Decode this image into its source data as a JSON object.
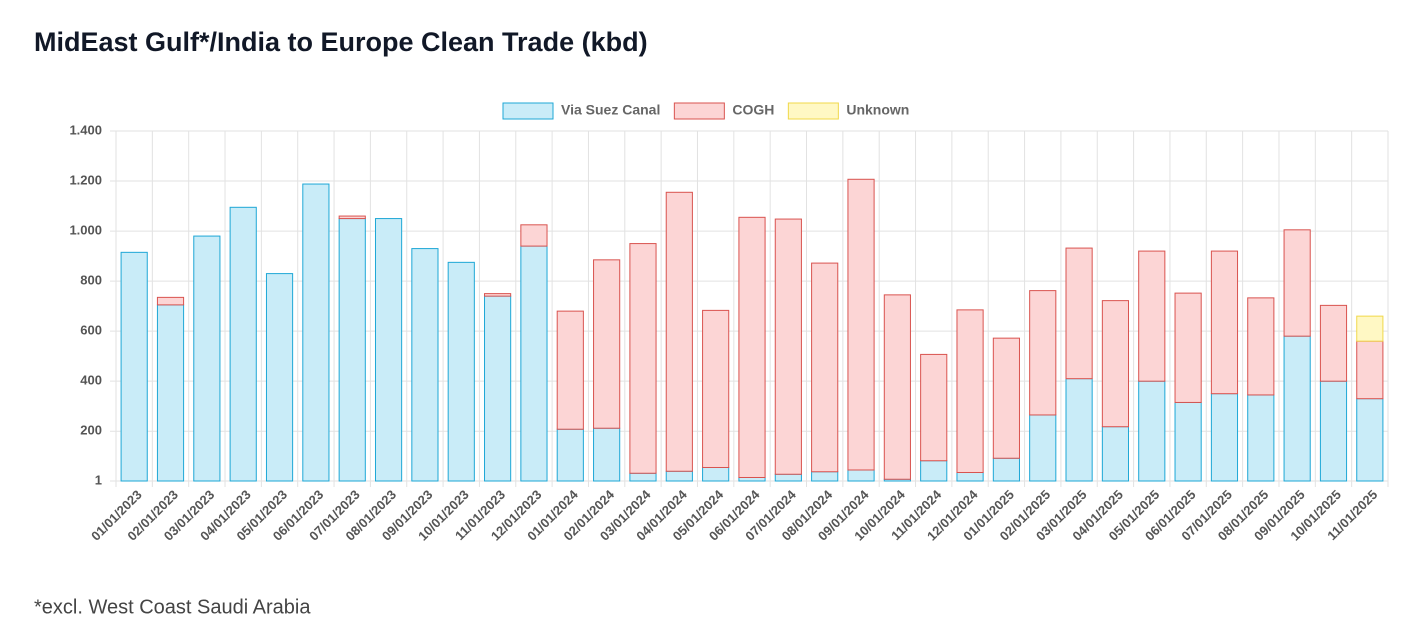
{
  "chart_data": {
    "type": "bar",
    "stacked": true,
    "title": "MidEast Gulf*/India to Europe Clean Trade (kbd)",
    "footnote": "*excl. West Coast Saudi Arabia",
    "categories": [
      "01/01/2023",
      "02/01/2023",
      "03/01/2023",
      "04/01/2023",
      "05/01/2023",
      "06/01/2023",
      "07/01/2023",
      "08/01/2023",
      "09/01/2023",
      "10/01/2023",
      "11/01/2023",
      "12/01/2023",
      "01/01/2024",
      "02/01/2024",
      "03/01/2024",
      "04/01/2024",
      "05/01/2024",
      "06/01/2024",
      "07/01/2024",
      "08/01/2024",
      "09/01/2024",
      "10/01/2024",
      "11/01/2024",
      "12/01/2024",
      "01/01/2025",
      "02/01/2025",
      "03/01/2025",
      "04/01/2025",
      "05/01/2025",
      "06/01/2025",
      "07/01/2025",
      "08/01/2025",
      "09/01/2025",
      "10/01/2025",
      "11/01/2025"
    ],
    "series": [
      {
        "name": "Via Suez Canal",
        "color": "#1ea7d6",
        "fill": "#c9ecf8",
        "values": [
          915,
          705,
          980,
          1095,
          830,
          1188,
          1050,
          1050,
          930,
          875,
          740,
          940,
          208,
          212,
          32,
          40,
          55,
          15,
          28,
          38,
          45,
          8,
          82,
          35,
          92,
          265,
          410,
          218,
          400,
          315,
          350,
          345,
          580,
          400,
          330
        ]
      },
      {
        "name": "COGH",
        "color": "#d9534f",
        "fill": "#fcd5d5",
        "values": [
          0,
          30,
          0,
          0,
          0,
          0,
          10,
          0,
          0,
          0,
          10,
          85,
          472,
          673,
          918,
          1115,
          628,
          1040,
          1020,
          834,
          1162,
          737,
          425,
          650,
          480,
          497,
          522,
          504,
          520,
          437,
          570,
          388,
          425,
          303,
          230
        ]
      },
      {
        "name": "Unknown",
        "color": "#f0d84a",
        "fill": "#fff8c4",
        "values": [
          0,
          0,
          0,
          0,
          0,
          0,
          0,
          0,
          0,
          0,
          0,
          0,
          0,
          0,
          0,
          0,
          0,
          0,
          0,
          0,
          0,
          0,
          0,
          0,
          0,
          0,
          0,
          0,
          0,
          0,
          0,
          0,
          0,
          0,
          100
        ]
      }
    ],
    "ylim": [
      1,
      1400
    ],
    "yticks": [
      1,
      200,
      400,
      600,
      800,
      {
        "value": 1000,
        "label": "1.000"
      },
      {
        "value": 1200,
        "label": "1.200"
      },
      {
        "value": 1400,
        "label": "1.400"
      }
    ],
    "grid": true,
    "legend": "top"
  }
}
